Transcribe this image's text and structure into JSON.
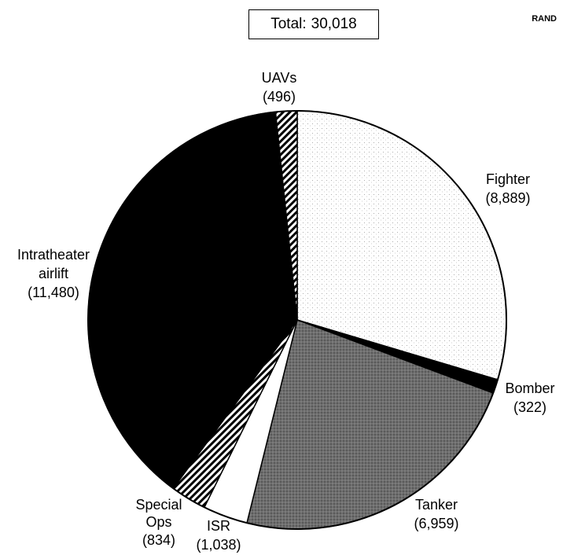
{
  "header": {
    "total_label": "Total:",
    "total_value": "30,018",
    "source": "RAND"
  },
  "chart_data": {
    "type": "pie",
    "title": "",
    "total": 30018,
    "slices": [
      {
        "name": "Fighter",
        "value": 8889,
        "display": "(8,889)",
        "fill": "dots"
      },
      {
        "name": "Bomber",
        "value": 322,
        "display": "(322)",
        "fill": "black"
      },
      {
        "name": "Tanker",
        "value": 6959,
        "display": "(6,959)",
        "fill": "gray-stipple"
      },
      {
        "name": "ISR",
        "value": 1038,
        "display": "(1,038)",
        "fill": "white"
      },
      {
        "name": "Special Ops",
        "value": 834,
        "display": "(834)",
        "fill": "hatch"
      },
      {
        "name": "Intratheater airlift",
        "value": 11480,
        "display": "(11,480)",
        "fill": "black"
      },
      {
        "name": "UAVs",
        "value": 496,
        "display": "(496)",
        "fill": "hatch"
      }
    ],
    "labels": {
      "fighter": [
        "Fighter",
        "(8,889)"
      ],
      "bomber": [
        "Bomber",
        "(322)"
      ],
      "tanker": [
        "Tanker",
        "(6,959)"
      ],
      "isr": [
        "ISR",
        "(1,038)"
      ],
      "special_ops": [
        "Special",
        "Ops",
        "(834)"
      ],
      "airlift": [
        "Intratheater",
        "airlift",
        "(11,480)"
      ],
      "uavs": [
        "UAVs",
        "(496)"
      ]
    },
    "start_angle": "12 o'clock",
    "direction": "clockwise",
    "legend": "none"
  }
}
